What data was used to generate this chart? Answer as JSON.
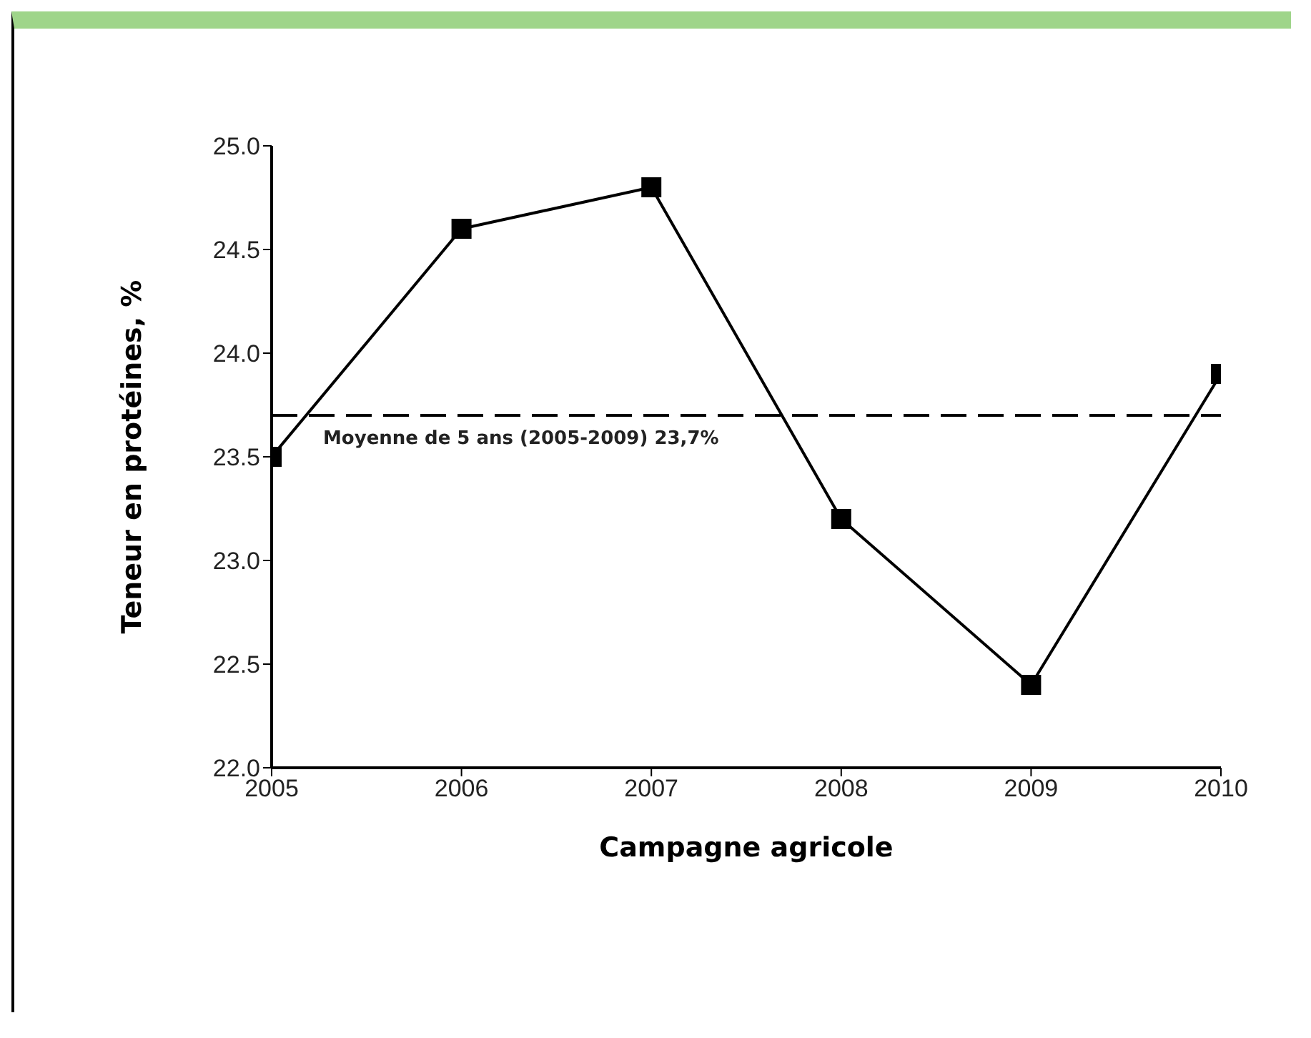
{
  "chart_data": {
    "type": "line",
    "xlabel": "Campagne agricole",
    "ylabel": "Teneur en protéines, %",
    "x": [
      2005,
      2006,
      2007,
      2008,
      2009,
      2010
    ],
    "series": [
      {
        "color": "#000000",
        "values": [
          23.5,
          24.6,
          24.8,
          23.2,
          22.4,
          23.9
        ]
      }
    ],
    "xlim": [
      2005,
      2010
    ],
    "xticks": [
      2005,
      2006,
      2007,
      2008,
      2009,
      2010
    ],
    "ylim": [
      22.0,
      25.0
    ],
    "yticks": [
      {
        "value": 22,
        "label": "22.0"
      },
      {
        "value": 22.5,
        "label": "22.5"
      },
      {
        "value": 23,
        "label": "23.0"
      },
      {
        "value": 23.5,
        "label": "23.5"
      },
      {
        "value": 24,
        "label": "24.0"
      },
      {
        "value": 24.5,
        "label": "24.5"
      },
      {
        "value": 25,
        "label": "25.0"
      }
    ],
    "ref_lines": [
      {
        "axis": "y",
        "value": 23.7,
        "label": "Moyenne de 5 ans (2005-2009) 23,7%",
        "color": "#000000",
        "line_style": "dashed"
      }
    ],
    "grid": false,
    "legend": false,
    "marker": "square",
    "line_style": "solid"
  }
}
